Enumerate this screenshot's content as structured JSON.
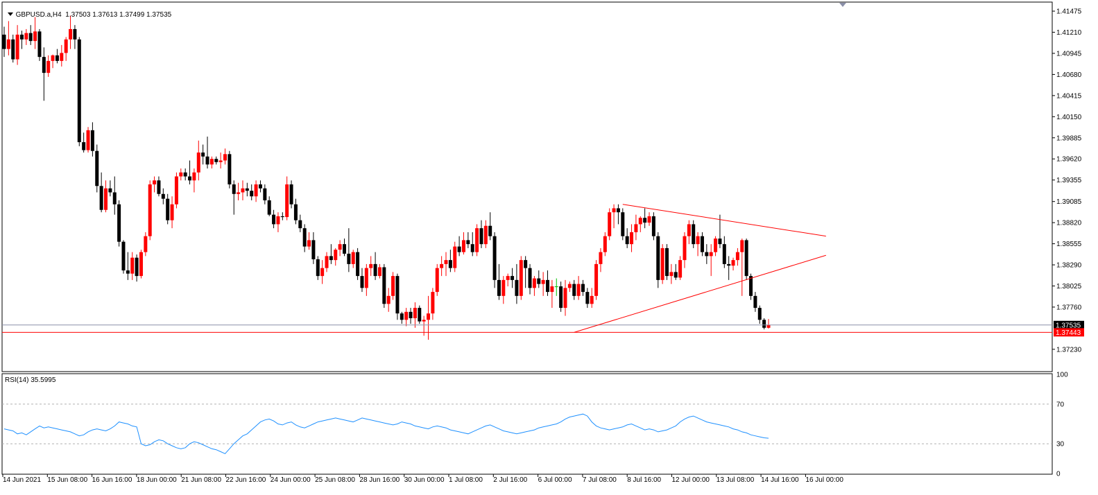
{
  "header": {
    "symbol_timeframe": "GBPUSD.a,H4",
    "ohlc": "1.37503 1.37613 1.37499 1.37535"
  },
  "rsi": {
    "label": "RSI(14) 35.5995"
  },
  "colors": {
    "bull": "#ff0000",
    "bear": "#000000",
    "doji": "#00c000",
    "trendline": "#ff0000",
    "rsi_line": "#1e90ff",
    "current_price_line": "#8a8fa8",
    "level_line": "#ff0000"
  },
  "chart_data": [
    {
      "type": "candlestick",
      "symbol": "GBPUSD.a",
      "timeframe": "H4",
      "ylim": [
        1.3695,
        1.4158
      ],
      "y_ticks": [
        "1.41475",
        "1.41210",
        "1.40945",
        "1.40680",
        "1.40415",
        "1.40150",
        "1.39885",
        "1.39620",
        "1.39355",
        "1.39085",
        "1.38820",
        "1.38555",
        "1.38290",
        "1.38025",
        "1.37760",
        "1.37535",
        "1.37443",
        "1.37230"
      ],
      "x_ticks": [
        "14 Jun 2021",
        "15 Jun 08:00",
        "16 Jun 16:00",
        "18 Jun 00:00",
        "21 Jun 08:00",
        "22 Jun 16:00",
        "24 Jun 00:00",
        "25 Jun 08:00",
        "28 Jun 16:00",
        "30 Jun 00:00",
        "1 Jul 08:00",
        "2 Jul 16:00",
        "6 Jul 00:00",
        "7 Jul 08:00",
        "8 Jul 16:00",
        "12 Jul 00:00",
        "13 Jul 08:00",
        "14 Jul 16:00",
        "16 Jul 00:00"
      ],
      "candles": [
        [
          1.4118,
          1.4128,
          1.409,
          1.41
        ],
        [
          1.41,
          1.4135,
          1.4092,
          1.4112
        ],
        [
          1.4112,
          1.4118,
          1.4083,
          1.4087
        ],
        [
          1.4087,
          1.413,
          1.408,
          1.4118
        ],
        [
          1.4118,
          1.4123,
          1.41,
          1.4112
        ],
        [
          1.4112,
          1.4125,
          1.4105,
          1.412
        ],
        [
          1.412,
          1.413,
          1.4105,
          1.411
        ],
        [
          1.411,
          1.414,
          1.41,
          1.4122
        ],
        [
          1.4122,
          1.4125,
          1.4085,
          1.409
        ],
        [
          1.409,
          1.4102,
          1.4035,
          1.407
        ],
        [
          1.407,
          1.4092,
          1.4065,
          1.4085
        ],
        [
          1.4085,
          1.4093,
          1.4076,
          1.4092
        ],
        [
          1.4092,
          1.41,
          1.4082,
          1.4085
        ],
        [
          1.4085,
          1.4105,
          1.4078,
          1.4095
        ],
        [
          1.4095,
          1.4115,
          1.4085,
          1.4112
        ],
        [
          1.4112,
          1.4142,
          1.41,
          1.4125
        ],
        [
          1.4125,
          1.413,
          1.41,
          1.4112
        ],
        [
          1.4112,
          1.4115,
          1.3978,
          1.3983
        ],
        [
          1.3983,
          1.3995,
          1.397,
          1.3973
        ],
        [
          1.3973,
          1.4002,
          1.397,
          1.3998
        ],
        [
          1.3998,
          1.4008,
          1.3965,
          1.3972
        ],
        [
          1.3972,
          1.398,
          1.392,
          1.3928
        ],
        [
          1.3928,
          1.3945,
          1.3895,
          1.3898
        ],
        [
          1.3898,
          1.3935,
          1.3895,
          1.3925
        ],
        [
          1.3925,
          1.3935,
          1.3915,
          1.392
        ],
        [
          1.392,
          1.394,
          1.3892,
          1.3905
        ],
        [
          1.3905,
          1.391,
          1.3852,
          1.3858
        ],
        [
          1.3858,
          1.386,
          1.3818,
          1.3822
        ],
        [
          1.3822,
          1.3845,
          1.381,
          1.3818
        ],
        [
          1.3818,
          1.3845,
          1.381,
          1.3838
        ],
        [
          1.3838,
          1.3842,
          1.3808,
          1.3815
        ],
        [
          1.3815,
          1.3848,
          1.3812,
          1.3845
        ],
        [
          1.3845,
          1.387,
          1.384,
          1.3865
        ],
        [
          1.3865,
          1.3935,
          1.386,
          1.393
        ],
        [
          1.393,
          1.394,
          1.392,
          1.3935
        ],
        [
          1.3935,
          1.394,
          1.3915,
          1.3918
        ],
        [
          1.3918,
          1.3925,
          1.3905,
          1.3912
        ],
        [
          1.3912,
          1.3918,
          1.388,
          1.3885
        ],
        [
          1.3885,
          1.3915,
          1.3875,
          1.3905
        ],
        [
          1.3905,
          1.3945,
          1.39,
          1.394
        ],
        [
          1.394,
          1.395,
          1.3935,
          1.3945
        ],
        [
          1.3945,
          1.395,
          1.3935,
          1.394
        ],
        [
          1.394,
          1.396,
          1.393,
          1.3935
        ],
        [
          1.3935,
          1.395,
          1.392,
          1.3945
        ],
        [
          1.3945,
          1.3985,
          1.3935,
          1.397
        ],
        [
          1.397,
          1.398,
          1.3955,
          1.3965
        ],
        [
          1.3965,
          1.399,
          1.395,
          1.3955
        ],
        [
          1.3955,
          1.3965,
          1.395,
          1.3962
        ],
        [
          1.3962,
          1.3965,
          1.3955,
          1.3958
        ],
        [
          1.3958,
          1.397,
          1.395,
          1.396
        ],
        [
          1.396,
          1.3975,
          1.3955,
          1.3968
        ],
        [
          1.3968,
          1.3972,
          1.3925,
          1.393
        ],
        [
          1.393,
          1.3935,
          1.3892,
          1.3918
        ],
        [
          1.3918,
          1.3932,
          1.391,
          1.392
        ],
        [
          1.392,
          1.3935,
          1.391,
          1.3925
        ],
        [
          1.3925,
          1.3932,
          1.3915,
          1.3922
        ],
        [
          1.3922,
          1.393,
          1.391,
          1.3915
        ],
        [
          1.3915,
          1.3935,
          1.3908,
          1.393
        ],
        [
          1.393,
          1.3935,
          1.392,
          1.3925
        ],
        [
          1.3925,
          1.393,
          1.3905,
          1.391
        ],
        [
          1.391,
          1.3915,
          1.389,
          1.3892
        ],
        [
          1.3892,
          1.3898,
          1.3875,
          1.388
        ],
        [
          1.388,
          1.3895,
          1.387,
          1.389
        ],
        [
          1.389,
          1.3895,
          1.3885,
          1.3889
        ],
        [
          1.3889,
          1.394,
          1.3885,
          1.393
        ],
        [
          1.393,
          1.3935,
          1.39,
          1.3905
        ],
        [
          1.3905,
          1.3912,
          1.388,
          1.3885
        ],
        [
          1.3885,
          1.3892,
          1.387,
          1.3875
        ],
        [
          1.3875,
          1.388,
          1.3845,
          1.3852
        ],
        [
          1.3852,
          1.387,
          1.3848,
          1.386
        ],
        [
          1.386,
          1.387,
          1.383,
          1.3836
        ],
        [
          1.3836,
          1.384,
          1.381,
          1.3815
        ],
        [
          1.3815,
          1.3835,
          1.3805,
          1.3825
        ],
        [
          1.3825,
          1.3845,
          1.382,
          1.384
        ],
        [
          1.384,
          1.3855,
          1.383,
          1.3835
        ],
        [
          1.3835,
          1.385,
          1.3828,
          1.3848
        ],
        [
          1.3848,
          1.386,
          1.384,
          1.3855
        ],
        [
          1.3855,
          1.3862,
          1.384,
          1.3843
        ],
        [
          1.3843,
          1.3875,
          1.382,
          1.383
        ],
        [
          1.383,
          1.3848,
          1.3825,
          1.3845
        ],
        [
          1.3845,
          1.385,
          1.381,
          1.3815
        ],
        [
          1.3815,
          1.3825,
          1.3795,
          1.38
        ],
        [
          1.38,
          1.383,
          1.379,
          1.3825
        ],
        [
          1.3825,
          1.384,
          1.3815,
          1.383
        ],
        [
          1.383,
          1.3845,
          1.381,
          1.3815
        ],
        [
          1.3815,
          1.383,
          1.3812,
          1.3826
        ],
        [
          1.3826,
          1.383,
          1.3775,
          1.378
        ],
        [
          1.378,
          1.38,
          1.377,
          1.379
        ],
        [
          1.379,
          1.382,
          1.3785,
          1.3815
        ],
        [
          1.3815,
          1.3818,
          1.376,
          1.3768
        ],
        [
          1.3768,
          1.377,
          1.3755,
          1.376
        ],
        [
          1.376,
          1.3775,
          1.3752,
          1.377
        ],
        [
          1.377,
          1.3775,
          1.3755,
          1.3762
        ],
        [
          1.3762,
          1.3782,
          1.375,
          1.3775
        ],
        [
          1.3775,
          1.3778,
          1.3755,
          1.3758
        ],
        [
          1.3758,
          1.3765,
          1.374,
          1.376
        ],
        [
          1.376,
          1.379,
          1.3735,
          1.3768
        ],
        [
          1.3768,
          1.38,
          1.376,
          1.3795
        ],
        [
          1.3795,
          1.383,
          1.379,
          1.3825
        ],
        [
          1.3825,
          1.384,
          1.3815,
          1.383
        ],
        [
          1.383,
          1.3845,
          1.3815,
          1.3835
        ],
        [
          1.3835,
          1.3848,
          1.382,
          1.3825
        ],
        [
          1.3825,
          1.3858,
          1.382,
          1.3852
        ],
        [
          1.3852,
          1.3865,
          1.384,
          1.3845
        ],
        [
          1.3845,
          1.387,
          1.3842,
          1.386
        ],
        [
          1.386,
          1.387,
          1.385,
          1.3855
        ],
        [
          1.3855,
          1.387,
          1.384,
          1.3845
        ],
        [
          1.3845,
          1.388,
          1.384,
          1.3875
        ],
        [
          1.3875,
          1.3885,
          1.385,
          1.3855
        ],
        [
          1.3855,
          1.3885,
          1.385,
          1.3878
        ],
        [
          1.3878,
          1.3895,
          1.386,
          1.3865
        ],
        [
          1.3865,
          1.387,
          1.38,
          1.381
        ],
        [
          1.381,
          1.383,
          1.3785,
          1.379
        ],
        [
          1.379,
          1.3815,
          1.378,
          1.381
        ],
        [
          1.381,
          1.3818,
          1.3802,
          1.3815
        ],
        [
          1.3815,
          1.3825,
          1.38,
          1.381
        ],
        [
          1.381,
          1.383,
          1.378,
          1.379
        ],
        [
          1.379,
          1.384,
          1.3785,
          1.3835
        ],
        [
          1.3835,
          1.384,
          1.38,
          1.3825
        ],
        [
          1.3825,
          1.383,
          1.3792,
          1.38
        ],
        [
          1.38,
          1.3815,
          1.379,
          1.3812
        ],
        [
          1.3812,
          1.3822,
          1.38,
          1.3805
        ],
        [
          1.3805,
          1.382,
          1.379,
          1.381
        ],
        [
          1.381,
          1.3822,
          1.379,
          1.3795
        ],
        [
          1.3795,
          1.381,
          1.3775,
          1.3802
        ],
        [
          1.3802,
          1.3812,
          1.379,
          1.3802
        ],
        [
          1.3802,
          1.3808,
          1.377,
          1.3775
        ],
        [
          1.3775,
          1.381,
          1.3765,
          1.38
        ],
        [
          1.38,
          1.3808,
          1.3795,
          1.3805
        ],
        [
          1.3805,
          1.381,
          1.3785,
          1.379
        ],
        [
          1.379,
          1.3815,
          1.3785,
          1.3805
        ],
        [
          1.3805,
          1.381,
          1.379,
          1.3795
        ],
        [
          1.3795,
          1.38,
          1.3775,
          1.378
        ],
        [
          1.378,
          1.38,
          1.3775,
          1.379
        ],
        [
          1.379,
          1.3835,
          1.3785,
          1.383
        ],
        [
          1.383,
          1.385,
          1.382,
          1.3845
        ],
        [
          1.3845,
          1.387,
          1.384,
          1.3865
        ],
        [
          1.3865,
          1.39,
          1.386,
          1.3895
        ],
        [
          1.3895,
          1.3905,
          1.3875,
          1.39
        ],
        [
          1.39,
          1.3905,
          1.388,
          1.3895
        ],
        [
          1.3895,
          1.39,
          1.386,
          1.3865
        ],
        [
          1.3865,
          1.3875,
          1.385,
          1.3855
        ],
        [
          1.3855,
          1.388,
          1.3845,
          1.387
        ],
        [
          1.387,
          1.3892,
          1.386,
          1.388
        ],
        [
          1.388,
          1.389,
          1.387,
          1.3888
        ],
        [
          1.3888,
          1.39,
          1.3875,
          1.3882
        ],
        [
          1.3882,
          1.3895,
          1.3878,
          1.389
        ],
        [
          1.389,
          1.3895,
          1.386,
          1.3865
        ],
        [
          1.3865,
          1.387,
          1.38,
          1.381
        ],
        [
          1.381,
          1.3855,
          1.3805,
          1.385
        ],
        [
          1.385,
          1.3855,
          1.381,
          1.3815
        ],
        [
          1.3815,
          1.383,
          1.3805,
          1.382
        ],
        [
          1.382,
          1.383,
          1.381,
          1.3813
        ],
        [
          1.3813,
          1.384,
          1.381,
          1.3835
        ],
        [
          1.3835,
          1.387,
          1.3825,
          1.3865
        ],
        [
          1.3865,
          1.3885,
          1.3855,
          1.388
        ],
        [
          1.388,
          1.3885,
          1.385,
          1.3855
        ],
        [
          1.3855,
          1.387,
          1.384,
          1.3865
        ],
        [
          1.3865,
          1.387,
          1.384,
          1.3845
        ],
        [
          1.3845,
          1.3855,
          1.383,
          1.384
        ],
        [
          1.384,
          1.3855,
          1.3815,
          1.3845
        ],
        [
          1.3845,
          1.3865,
          1.384,
          1.3862
        ],
        [
          1.3862,
          1.3892,
          1.385,
          1.3855
        ],
        [
          1.3855,
          1.3865,
          1.3825,
          1.383
        ],
        [
          1.383,
          1.384,
          1.381,
          1.3828
        ],
        [
          1.3828,
          1.3838,
          1.3822,
          1.3835
        ],
        [
          1.3835,
          1.385,
          1.3828,
          1.3845
        ],
        [
          1.3845,
          1.3862,
          1.379,
          1.386
        ],
        [
          1.386,
          1.3862,
          1.381,
          1.3815
        ],
        [
          1.3815,
          1.3818,
          1.3785,
          1.379
        ],
        [
          1.379,
          1.3795,
          1.377,
          1.3775
        ],
        [
          1.3775,
          1.3778,
          1.3755,
          1.376
        ],
        [
          1.376,
          1.3762,
          1.3748,
          1.375
        ],
        [
          1.375,
          1.3761,
          1.3749,
          1.37535
        ]
      ],
      "current_price": 1.37535,
      "level_price": 1.37443,
      "trendlines": [
        {
          "from_index": 140,
          "from_price": 1.3905,
          "to_index": 186,
          "to_price": 1.3865
        },
        {
          "from_index": 129,
          "from_price": 1.37443,
          "to_index": 186,
          "to_price": 1.3841
        }
      ]
    },
    {
      "type": "line",
      "name": "RSI(14)",
      "value": 35.5995,
      "ylim": [
        0,
        100
      ],
      "y_ticks": [
        "100",
        "70",
        "30",
        "0"
      ],
      "levels": [
        70,
        30
      ],
      "values": [
        45,
        44,
        43,
        40,
        41,
        39,
        42,
        45,
        48,
        46,
        47,
        46,
        45,
        44,
        43,
        42,
        40,
        38,
        39,
        42,
        44,
        45,
        44,
        43,
        45,
        48,
        52,
        51,
        50,
        48,
        47,
        30,
        28,
        29,
        32,
        34,
        33,
        30,
        28,
        26,
        25,
        26,
        30,
        32,
        31,
        29,
        27,
        25,
        24,
        22,
        20,
        25,
        30,
        34,
        38,
        40,
        44,
        48,
        52,
        54,
        55,
        53,
        50,
        49,
        51,
        52,
        49,
        47,
        46,
        48,
        50,
        52,
        53,
        54,
        55,
        56,
        55,
        54,
        53,
        52,
        54,
        56,
        55,
        54,
        53,
        52,
        51,
        50,
        49,
        50,
        52,
        51,
        50,
        48,
        47,
        46,
        45,
        47,
        48,
        47,
        46,
        44,
        43,
        42,
        41,
        40,
        42,
        44,
        46,
        48,
        49,
        47,
        45,
        43,
        42,
        41,
        40,
        41,
        42,
        43,
        44,
        46,
        47,
        48,
        49,
        50,
        52,
        55,
        57,
        58,
        59,
        60,
        58,
        52,
        48,
        46,
        45,
        44,
        45,
        46,
        47,
        49,
        50,
        48,
        46,
        44,
        45,
        44,
        42,
        43,
        44,
        46,
        48,
        52,
        55,
        57,
        58,
        56,
        54,
        52,
        51,
        50,
        49,
        48,
        47,
        45,
        44,
        42,
        41,
        39,
        38,
        37,
        36,
        35.5995
      ]
    }
  ]
}
